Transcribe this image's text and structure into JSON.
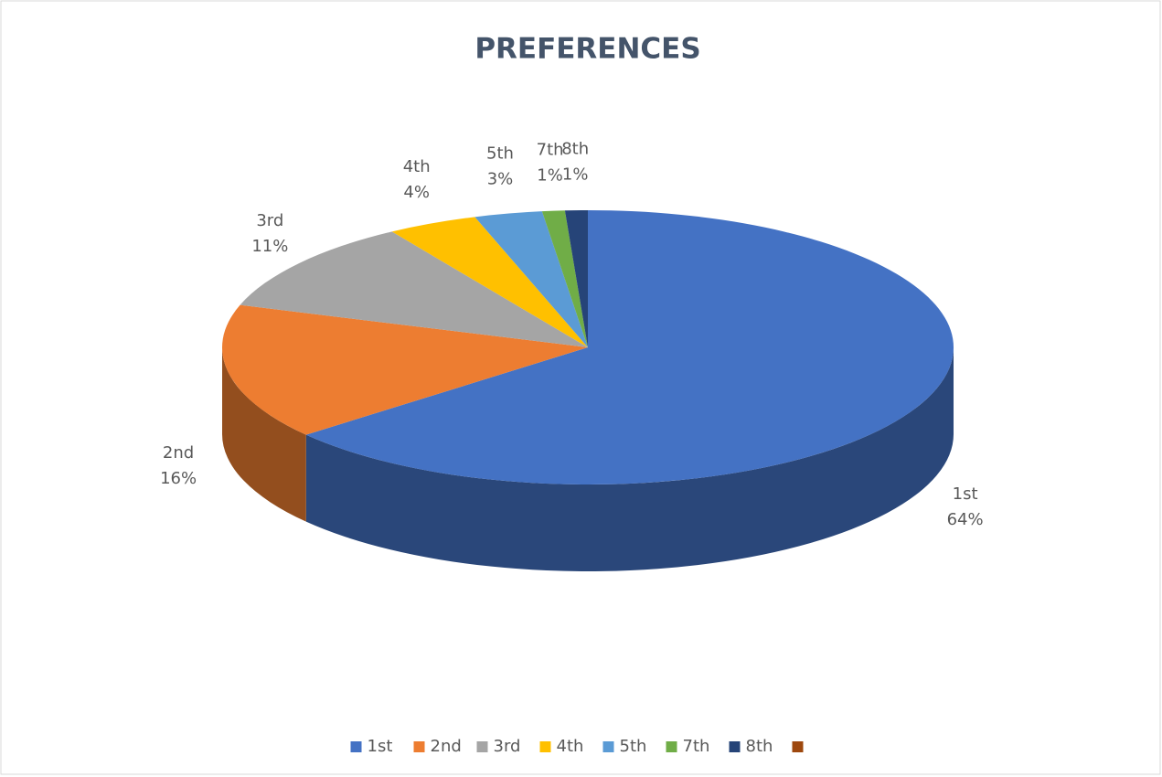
{
  "chart_data": {
    "type": "pie",
    "title": "PREFERENCES",
    "categories": [
      "1st",
      "2nd",
      "3rd",
      "4th",
      "5th",
      "7th",
      "8th",
      null
    ],
    "values": [
      64,
      16,
      11,
      4,
      3,
      1,
      1,
      0
    ],
    "value_labels": [
      "64%",
      "16%",
      "11%",
      "4%",
      "3%",
      "1%",
      "1%",
      null
    ],
    "colors": [
      "#4472c4",
      "#ed7d31",
      "#a5a5a5",
      "#ffc000",
      "#5b9bd5",
      "#70ad47",
      "#264478",
      "#9e480e"
    ],
    "legend": "bottom"
  }
}
